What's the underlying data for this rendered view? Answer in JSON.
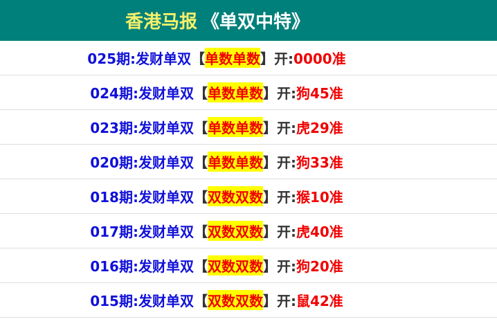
{
  "header": {
    "title_main": "香港马报",
    "title_sub": "《单双中特》"
  },
  "colors": {
    "header_bg": "#00807a",
    "title_main": "#f5f06a",
    "issue": "#1010d8",
    "highlight_bg": "#ffff00",
    "result": "#f00000"
  },
  "rows": [
    {
      "issue": "025期:发财单双",
      "lb": "【",
      "pick": "单数单数",
      "rb": "】",
      "open": "开:",
      "result": "0000准"
    },
    {
      "issue": "024期:发财单双",
      "lb": "【",
      "pick": "单数单数",
      "rb": "】",
      "open": "开:",
      "result": "狗45准"
    },
    {
      "issue": "023期:发财单双",
      "lb": "【",
      "pick": "单数单数",
      "rb": "】",
      "open": "开:",
      "result": "虎29准"
    },
    {
      "issue": "020期:发财单双",
      "lb": "【",
      "pick": "单数单数",
      "rb": "】",
      "open": "开:",
      "result": "狗33准"
    },
    {
      "issue": "018期:发财单双",
      "lb": "【",
      "pick": "双数双数",
      "rb": "】",
      "open": "开:",
      "result": "猴10准"
    },
    {
      "issue": "017期:发财单双",
      "lb": "【",
      "pick": "双数双数",
      "rb": "】",
      "open": "开:",
      "result": "虎40准"
    },
    {
      "issue": "016期:发财单双",
      "lb": "【",
      "pick": "双数双数",
      "rb": "】",
      "open": "开:",
      "result": "狗20准"
    },
    {
      "issue": "015期:发财单双",
      "lb": "【",
      "pick": "双数双数",
      "rb": "】",
      "open": "开:",
      "result": "鼠42准"
    }
  ]
}
